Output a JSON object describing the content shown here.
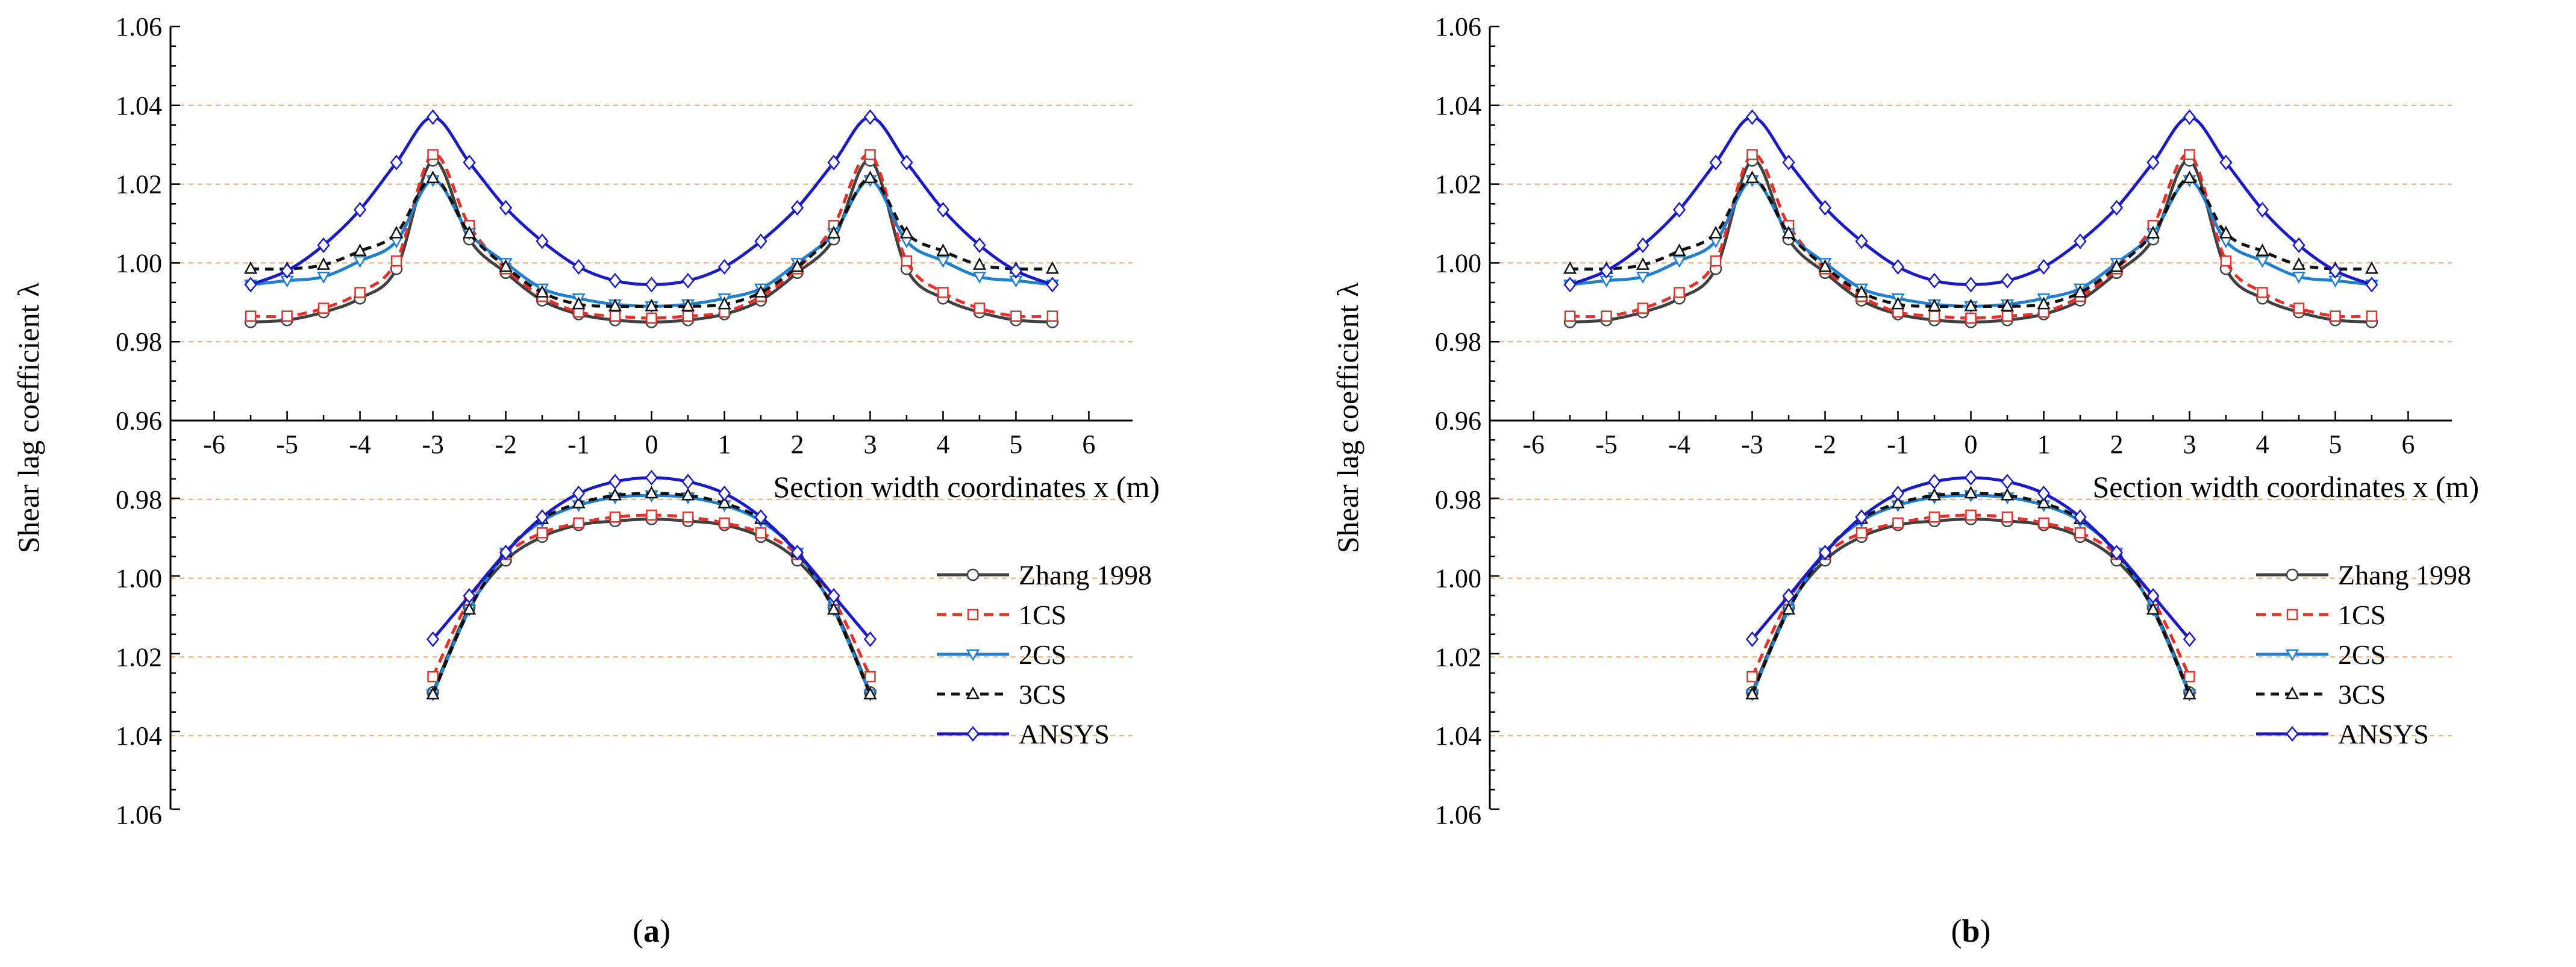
{
  "chart_data": [
    {
      "type": "line",
      "panel_label": "(a)",
      "panel_letter": "a",
      "ylabel": "Shear lag coefficient λ",
      "xlabel": "Section width coordinates x (m)",
      "xlim": [
        -6.6,
        6.6
      ],
      "ylim": [
        0.96,
        1.06
      ],
      "y_ticks": [
        "1.06",
        "1.04",
        "1.02",
        "1.00",
        "0.98",
        "0.96"
      ],
      "y_ticks_lower": [
        "0.98",
        "1.00",
        "1.02",
        "1.04",
        "1.06"
      ],
      "x_ticks": [
        "-6",
        "-5",
        "-4",
        "-3",
        "-2",
        "-1",
        "0",
        "1",
        "2",
        "3",
        "4",
        "5",
        "6"
      ],
      "x": [
        -5.5,
        -5,
        -4.5,
        -4,
        -3.5,
        -3,
        -2.5,
        -2,
        -1.5,
        -1,
        -0.5,
        0,
        0.5,
        1,
        1.5,
        2,
        2.5,
        3,
        3.5,
        4,
        4.5,
        5,
        5.5
      ],
      "series": [
        {
          "name": "Zhang 1998",
          "color": "#404040",
          "dash": "",
          "marker": "circle",
          "values": [
            0.985,
            0.9855,
            0.9875,
            0.991,
            0.9985,
            1.026,
            1.006,
            0.9975,
            0.9905,
            0.987,
            0.9855,
            0.985,
            0.9855,
            0.987,
            0.9905,
            0.9975,
            1.006,
            1.026,
            0.9985,
            0.991,
            0.9875,
            0.9855,
            0.985
          ]
        },
        {
          "name": "1CS",
          "color": "#e8302a",
          "dash": "16,10",
          "marker": "square",
          "values": [
            0.9865,
            0.9865,
            0.9885,
            0.9925,
            1.0005,
            1.0275,
            1.0095,
            0.9985,
            0.9915,
            0.9875,
            0.9865,
            0.986,
            0.9865,
            0.9875,
            0.9915,
            0.9985,
            1.0095,
            1.0275,
            1.0005,
            0.9925,
            0.9885,
            0.9865,
            0.9865
          ]
        },
        {
          "name": "2CS",
          "color": "#1f7fd1",
          "dash": "",
          "marker": "triangle-down",
          "values": [
            0.9945,
            0.9955,
            0.9965,
            1.0005,
            1.0055,
            1.021,
            1.0075,
            1.0,
            0.9935,
            0.991,
            0.9895,
            0.989,
            0.9895,
            0.991,
            0.9935,
            1.0,
            1.0075,
            1.021,
            1.0055,
            1.0005,
            0.9965,
            0.9955,
            0.9945
          ]
        },
        {
          "name": "3CS",
          "color": "#111111",
          "dash": "14,10",
          "marker": "triangle-up",
          "values": [
            0.9985,
            0.9985,
            0.9995,
            1.003,
            1.0075,
            1.0215,
            1.0075,
            0.999,
            0.9925,
            0.9895,
            0.989,
            0.989,
            0.989,
            0.9895,
            0.9925,
            0.999,
            1.0075,
            1.0215,
            1.0075,
            1.003,
            0.9995,
            0.9985,
            0.9985
          ]
        },
        {
          "name": "ANSYS",
          "color": "#1a1ac8",
          "dash": "",
          "marker": "diamond",
          "values": [
            0.9945,
            0.998,
            1.0045,
            1.0135,
            1.0255,
            1.037,
            1.0255,
            1.014,
            1.0055,
            0.999,
            0.9955,
            0.9945,
            0.9955,
            0.999,
            1.0055,
            1.014,
            1.0255,
            1.037,
            1.0255,
            1.0135,
            1.0045,
            0.998,
            0.9945
          ]
        }
      ],
      "lower_series": [
        {
          "name": "Zhang 1998",
          "values": [
            1.029,
            1.0075,
            0.9955,
            0.9895,
            0.9865,
            0.9855,
            0.985,
            0.9855,
            0.9865,
            0.9895,
            0.9955,
            1.0075,
            1.029
          ]
        },
        {
          "name": "1CS",
          "values": [
            1.025,
            1.0055,
            0.994,
            0.9885,
            0.986,
            0.9845,
            0.984,
            0.9845,
            0.986,
            0.9885,
            0.994,
            1.0055,
            1.025
          ]
        },
        {
          "name": "2CS",
          "values": [
            1.0295,
            1.008,
            0.9935,
            0.9855,
            0.9815,
            0.9795,
            0.979,
            0.9795,
            0.9815,
            0.9855,
            0.9935,
            1.008,
            1.0295
          ]
        },
        {
          "name": "3CS",
          "values": [
            1.0295,
            1.008,
            0.9935,
            0.985,
            0.981,
            0.979,
            0.9785,
            0.979,
            0.981,
            0.985,
            0.9935,
            1.008,
            1.0295
          ]
        },
        {
          "name": "ANSYS",
          "values": [
            1.0155,
            1.0045,
            0.9935,
            0.9845,
            0.9785,
            0.9755,
            0.9745,
            0.9755,
            0.9785,
            0.9845,
            0.9935,
            1.0045,
            1.0155
          ]
        }
      ],
      "lower_x": [
        -3,
        -2.5,
        -2,
        -1.5,
        -1,
        -0.5,
        0,
        0.5,
        1,
        1.5,
        2,
        2.5,
        3
      ]
    },
    {
      "type": "line",
      "panel_label": "(b)",
      "panel_letter": "b",
      "ylabel": "Shear lag coefficient λ",
      "xlabel": "Section width coordinates x (m)",
      "xlim": [
        -6.6,
        6.6
      ],
      "ylim": [
        0.96,
        1.06
      ],
      "y_ticks": [
        "1.06",
        "1.04",
        "1.02",
        "1.00",
        "0.98",
        "0.96"
      ],
      "y_ticks_lower": [
        "0.98",
        "1.00",
        "1.02",
        "1.04",
        "1.06"
      ],
      "x_ticks": [
        "-6",
        "-5",
        "-4",
        "-3",
        "-2",
        "-1",
        "0",
        "1",
        "2",
        "3",
        "4",
        "5",
        "6"
      ],
      "x": [
        -5.5,
        -5,
        -4.5,
        -4,
        -3.5,
        -3,
        -2.5,
        -2,
        -1.5,
        -1,
        -0.5,
        0,
        0.5,
        1,
        1.5,
        2,
        2.5,
        3,
        3.5,
        4,
        4.5,
        5,
        5.5
      ],
      "series": [
        {
          "name": "Zhang 1998",
          "color": "#404040",
          "dash": "",
          "marker": "circle",
          "values": [
            0.985,
            0.9855,
            0.9875,
            0.991,
            0.9985,
            1.026,
            1.006,
            0.9975,
            0.9905,
            0.987,
            0.9855,
            0.985,
            0.9855,
            0.987,
            0.9905,
            0.9975,
            1.006,
            1.026,
            0.9985,
            0.991,
            0.9875,
            0.9855,
            0.985
          ]
        },
        {
          "name": "1CS",
          "color": "#e8302a",
          "dash": "16,10",
          "marker": "square",
          "values": [
            0.9865,
            0.9865,
            0.9885,
            0.9925,
            1.0005,
            1.0275,
            1.0095,
            0.9985,
            0.9915,
            0.9875,
            0.9865,
            0.986,
            0.9865,
            0.9875,
            0.9915,
            0.9985,
            1.0095,
            1.0275,
            1.0005,
            0.9925,
            0.9885,
            0.9865,
            0.9865
          ]
        },
        {
          "name": "2CS",
          "color": "#1f7fd1",
          "dash": "",
          "marker": "triangle-down",
          "values": [
            0.9945,
            0.9955,
            0.9965,
            1.0005,
            1.0055,
            1.021,
            1.0075,
            1.0,
            0.9935,
            0.991,
            0.9895,
            0.989,
            0.9895,
            0.991,
            0.9935,
            1.0,
            1.0075,
            1.021,
            1.0055,
            1.0005,
            0.9965,
            0.9955,
            0.9945
          ]
        },
        {
          "name": "3CS",
          "color": "#111111",
          "dash": "14,10",
          "marker": "triangle-up",
          "values": [
            0.9985,
            0.9985,
            0.9995,
            1.003,
            1.0075,
            1.0215,
            1.0075,
            0.999,
            0.9925,
            0.9895,
            0.989,
            0.989,
            0.989,
            0.9895,
            0.9925,
            0.999,
            1.0075,
            1.0215,
            1.0075,
            1.003,
            0.9995,
            0.9985,
            0.9985
          ]
        },
        {
          "name": "ANSYS",
          "color": "#1a1ac8",
          "dash": "",
          "marker": "diamond",
          "values": [
            0.9945,
            0.998,
            1.0045,
            1.0135,
            1.0255,
            1.037,
            1.0255,
            1.014,
            1.0055,
            0.999,
            0.9955,
            0.9945,
            0.9955,
            0.999,
            1.0055,
            1.014,
            1.0255,
            1.037,
            1.0255,
            1.0135,
            1.0045,
            0.998,
            0.9945
          ]
        }
      ],
      "lower_series": [
        {
          "name": "Zhang 1998",
          "values": [
            1.029,
            1.0075,
            0.9955,
            0.9895,
            0.9865,
            0.9855,
            0.985,
            0.9855,
            0.9865,
            0.9895,
            0.9955,
            1.0075,
            1.029
          ]
        },
        {
          "name": "1CS",
          "values": [
            1.025,
            1.0055,
            0.994,
            0.9885,
            0.986,
            0.9845,
            0.984,
            0.9845,
            0.986,
            0.9885,
            0.994,
            1.0055,
            1.025
          ]
        },
        {
          "name": "2CS",
          "values": [
            1.0295,
            1.008,
            0.9935,
            0.9855,
            0.9815,
            0.9795,
            0.979,
            0.9795,
            0.9815,
            0.9855,
            0.9935,
            1.008,
            1.0295
          ]
        },
        {
          "name": "3CS",
          "values": [
            1.0295,
            1.008,
            0.9935,
            0.985,
            0.981,
            0.979,
            0.9785,
            0.979,
            0.981,
            0.985,
            0.9935,
            1.008,
            1.0295
          ]
        },
        {
          "name": "ANSYS",
          "values": [
            1.0155,
            1.0045,
            0.9935,
            0.9845,
            0.9785,
            0.9755,
            0.9745,
            0.9755,
            0.9785,
            0.9845,
            0.9935,
            1.0045,
            1.0155
          ]
        }
      ],
      "lower_x": [
        -3,
        -2.5,
        -2,
        -1.5,
        -1,
        -0.5,
        0,
        0.5,
        1,
        1.5,
        2,
        2.5,
        3
      ]
    }
  ]
}
